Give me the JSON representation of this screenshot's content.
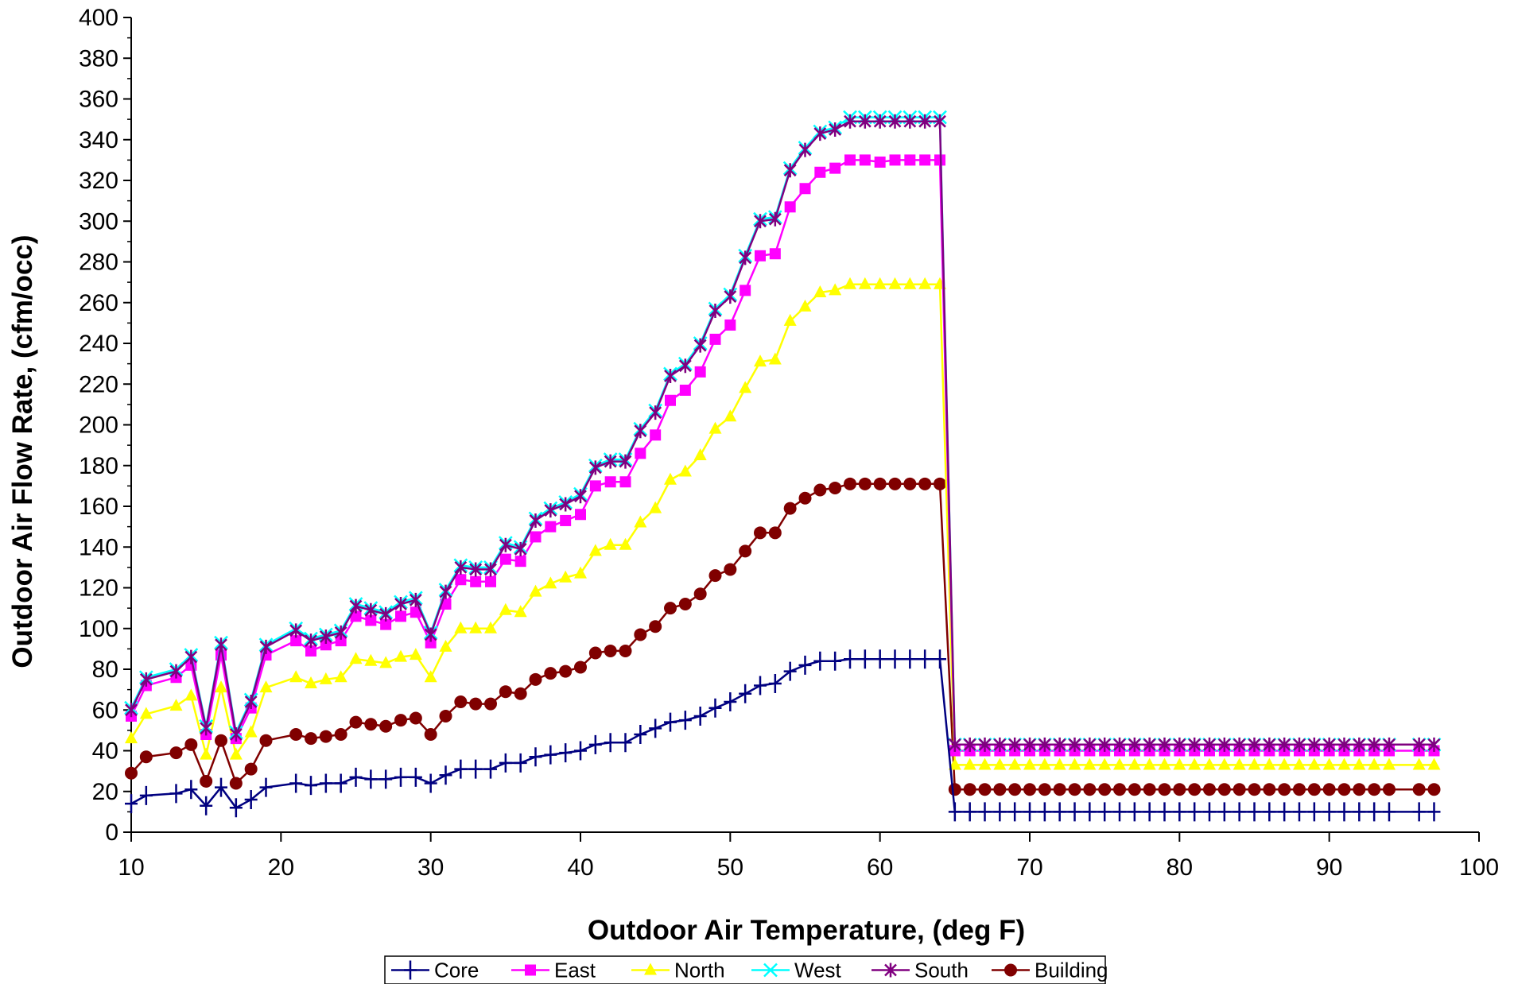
{
  "chart_data": {
    "type": "line",
    "title": "",
    "xlabel": "Outdoor Air Temperature, (deg F)",
    "ylabel": "Outdoor Air Flow Rate, (cfm/occ)",
    "xlim": [
      10,
      100
    ],
    "ylim": [
      0,
      400
    ],
    "xticks": [
      10,
      20,
      30,
      40,
      50,
      60,
      70,
      80,
      90,
      100
    ],
    "yticks": [
      0,
      20,
      40,
      60,
      80,
      100,
      120,
      140,
      160,
      180,
      200,
      220,
      240,
      260,
      280,
      300,
      320,
      340,
      360,
      380,
      400
    ],
    "grid": false,
    "legend_position": "bottom",
    "x": [
      10,
      11,
      13,
      14,
      15,
      16,
      17,
      18,
      19,
      21,
      22,
      23,
      24,
      25,
      26,
      27,
      28,
      29,
      30,
      31,
      32,
      33,
      34,
      35,
      36,
      37,
      38,
      39,
      40,
      41,
      42,
      43,
      44,
      45,
      46,
      47,
      48,
      49,
      50,
      51,
      52,
      53,
      54,
      55,
      56,
      57,
      58,
      59,
      60,
      61,
      62,
      63,
      64,
      65,
      66,
      67,
      68,
      69,
      70,
      71,
      72,
      73,
      74,
      75,
      76,
      77,
      78,
      79,
      80,
      81,
      82,
      83,
      84,
      85,
      86,
      87,
      88,
      89,
      90,
      91,
      92,
      93,
      94,
      96,
      97
    ],
    "series": [
      {
        "name": "Core",
        "color": "#000080",
        "marker": "plus",
        "values": [
          14,
          18,
          19,
          21,
          13,
          22,
          12,
          16,
          22,
          24,
          23,
          24,
          24,
          27,
          26,
          26,
          27,
          27,
          24,
          28,
          31,
          31,
          31,
          34,
          34,
          37,
          38,
          39,
          40,
          43,
          44,
          44,
          48,
          51,
          54,
          55,
          57,
          61,
          64,
          68,
          72,
          73,
          79,
          82,
          84,
          84,
          85,
          85,
          85,
          85,
          85,
          85,
          85,
          10,
          10,
          10,
          10,
          10,
          10,
          10,
          10,
          10,
          10,
          10,
          10,
          10,
          10,
          10,
          10,
          10,
          10,
          10,
          10,
          10,
          10,
          10,
          10,
          10,
          10,
          10,
          10,
          10,
          10,
          10,
          10
        ]
      },
      {
        "name": "East",
        "color": "#FF00FF",
        "marker": "square",
        "values": [
          57,
          72,
          76,
          82,
          48,
          87,
          46,
          61,
          87,
          94,
          89,
          92,
          94,
          106,
          104,
          102,
          106,
          108,
          93,
          112,
          124,
          123,
          123,
          134,
          133,
          145,
          150,
          153,
          156,
          170,
          172,
          172,
          186,
          195,
          212,
          217,
          226,
          242,
          249,
          266,
          283,
          284,
          307,
          316,
          324,
          326,
          330,
          330,
          329,
          330,
          330,
          330,
          330,
          40,
          40,
          40,
          40,
          40,
          40,
          40,
          40,
          40,
          40,
          40,
          40,
          40,
          40,
          40,
          40,
          40,
          40,
          40,
          40,
          40,
          40,
          40,
          40,
          40,
          40,
          40,
          40,
          40,
          40,
          40,
          40
        ]
      },
      {
        "name": "North",
        "color": "#FFFF00",
        "marker": "triangle",
        "values": [
          46,
          58,
          62,
          67,
          38,
          71,
          38,
          49,
          71,
          76,
          73,
          75,
          76,
          85,
          84,
          83,
          86,
          87,
          76,
          91,
          100,
          100,
          100,
          109,
          108,
          118,
          122,
          125,
          127,
          138,
          141,
          141,
          152,
          159,
          173,
          177,
          185,
          198,
          204,
          218,
          231,
          232,
          251,
          258,
          265,
          266,
          269,
          269,
          269,
          269,
          269,
          269,
          269,
          33,
          33,
          33,
          33,
          33,
          33,
          33,
          33,
          33,
          33,
          33,
          33,
          33,
          33,
          33,
          33,
          33,
          33,
          33,
          33,
          33,
          33,
          33,
          33,
          33,
          33,
          33,
          33,
          33,
          33,
          33,
          33
        ]
      },
      {
        "name": "West",
        "color": "#00FFFF",
        "marker": "x",
        "values": [
          61,
          76,
          80,
          87,
          52,
          93,
          49,
          65,
          92,
          100,
          95,
          97,
          99,
          112,
          110,
          108,
          113,
          115,
          98,
          119,
          131,
          130,
          130,
          142,
          140,
          154,
          159,
          162,
          166,
          180,
          183,
          183,
          198,
          207,
          225,
          230,
          240,
          257,
          264,
          283,
          301,
          302,
          326,
          336,
          344,
          346,
          351,
          351,
          351,
          351,
          351,
          351,
          351,
          43,
          43,
          43,
          43,
          43,
          43,
          43,
          43,
          43,
          43,
          43,
          43,
          43,
          43,
          43,
          43,
          43,
          43,
          43,
          43,
          43,
          43,
          43,
          43,
          43,
          43,
          43,
          43,
          43,
          43,
          43,
          43
        ]
      },
      {
        "name": "South",
        "color": "#800080",
        "marker": "star",
        "values": [
          60,
          75,
          79,
          86,
          51,
          92,
          48,
          64,
          91,
          99,
          94,
          96,
          98,
          111,
          109,
          107,
          112,
          114,
          97,
          118,
          130,
          129,
          129,
          141,
          139,
          153,
          158,
          161,
          165,
          179,
          182,
          182,
          197,
          206,
          224,
          229,
          239,
          256,
          263,
          282,
          300,
          301,
          325,
          335,
          343,
          345,
          349,
          349,
          349,
          349,
          349,
          349,
          349,
          43,
          43,
          43,
          43,
          43,
          43,
          43,
          43,
          43,
          43,
          43,
          43,
          43,
          43,
          43,
          43,
          43,
          43,
          43,
          43,
          43,
          43,
          43,
          43,
          43,
          43,
          43,
          43,
          43,
          43,
          43,
          43
        ]
      },
      {
        "name": "Building",
        "color": "#800000",
        "marker": "circle",
        "values": [
          29,
          37,
          39,
          43,
          25,
          45,
          24,
          31,
          45,
          48,
          46,
          47,
          48,
          54,
          53,
          52,
          55,
          56,
          48,
          57,
          64,
          63,
          63,
          69,
          68,
          75,
          78,
          79,
          81,
          88,
          89,
          89,
          97,
          101,
          110,
          112,
          117,
          126,
          129,
          138,
          147,
          147,
          159,
          164,
          168,
          169,
          171,
          171,
          171,
          171,
          171,
          171,
          171,
          21,
          21,
          21,
          21,
          21,
          21,
          21,
          21,
          21,
          21,
          21,
          21,
          21,
          21,
          21,
          21,
          21,
          21,
          21,
          21,
          21,
          21,
          21,
          21,
          21,
          21,
          21,
          21,
          21,
          21,
          21,
          21
        ]
      }
    ]
  }
}
